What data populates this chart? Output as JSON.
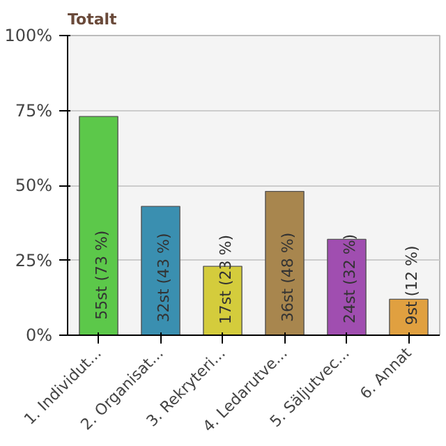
{
  "chart_data": {
    "type": "bar",
    "title": "Totalt",
    "categories": [
      "1. Individut...",
      "2. Organisat...",
      "3. Rekryteri...",
      "4. Ledarutve...",
      "5. Säljutvec...",
      "6. Annat"
    ],
    "values": [
      73,
      43,
      23,
      48,
      32,
      12
    ],
    "colors": [
      "#5cc84a",
      "#3a8fb0",
      "#d4cc3c",
      "#a8864e",
      "#a04eb0",
      "#e0a040"
    ],
    "value_labels": [
      "55st (73 %)",
      "32st (43 %)",
      "17st (23 %)",
      "36st (48 %)",
      "24st (32 %)",
      "9st (12 %)"
    ],
    "ylim": [
      0,
      100
    ],
    "yticks": [
      {
        "value": 0,
        "label": "0%"
      },
      {
        "value": 25,
        "label": "25%"
      },
      {
        "value": 50,
        "label": "50%"
      },
      {
        "value": 75,
        "label": "75%"
      },
      {
        "value": 100,
        "label": "100%"
      }
    ],
    "grid": "y"
  }
}
